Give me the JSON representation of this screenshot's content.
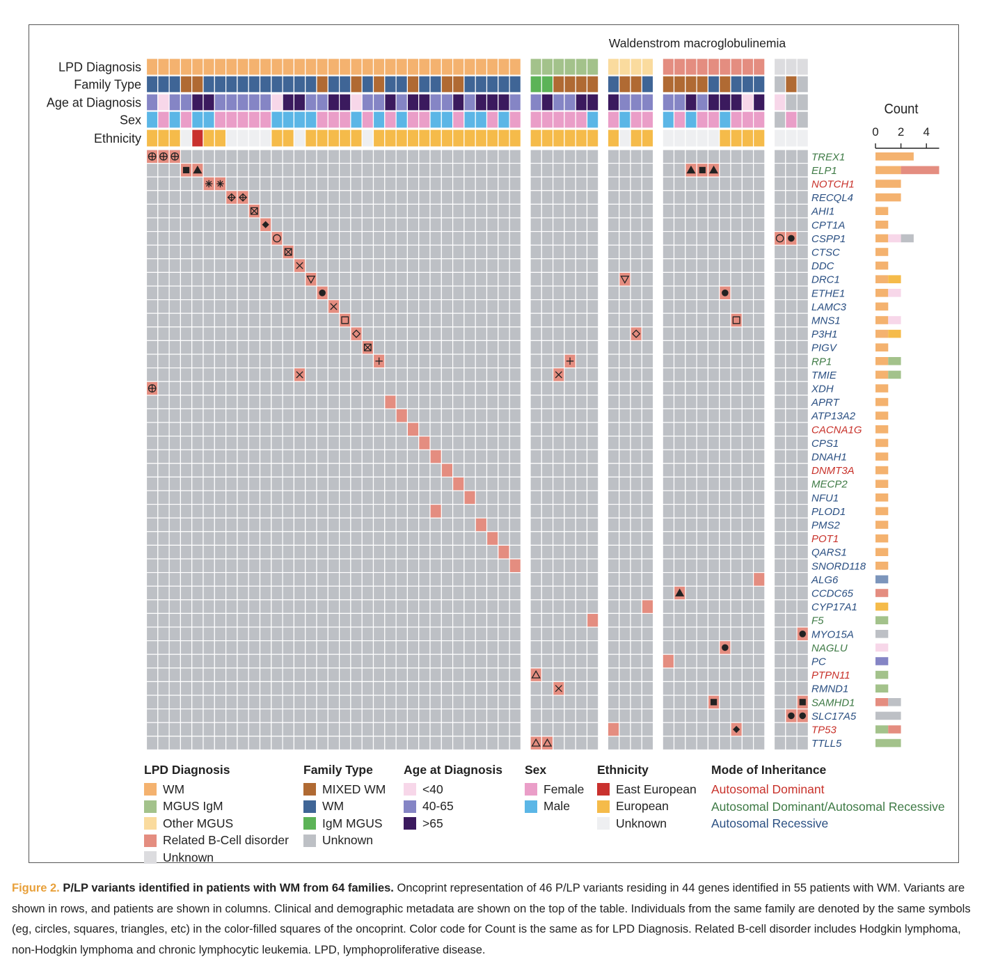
{
  "figure": {
    "label": "Figure 2.",
    "title": "P/LP variants identified in patients with WM from 64 families.",
    "text": "Oncoprint representation of 46 P/LP variants residing in 44 genes identified in 55 patients with WM. Variants are shown in rows, and patients are shown in columns. Clinical and demographic metadata are shown on the top of the table. Individuals from the same family are denoted by the same symbols (eg, circles, squares, triangles, etc) in the color-filled squares of the oncoprint. Color code for Count is the same as for LPD Diagnosis. Related B-cell disorder includes Hodgkin lymphoma, non-Hodgkin lymphoma and chronic lymphocytic leukemia. LPD, lymphoproliferative disease."
  },
  "chart_data": {
    "type": "heatmap",
    "title": "Waldenstrom macroglobulinemia",
    "count_axis": {
      "label": "Count",
      "ticks": [
        "0",
        "2",
        "4"
      ],
      "range": [
        0,
        5
      ]
    },
    "track_labels": [
      "LPD Diagnosis",
      "Family Type",
      "Age at Diagnosis",
      "Sex",
      "Ethnicity"
    ],
    "groups": [
      {
        "lpd": "WM",
        "patients": 33
      },
      {
        "lpd": "MGUS IgM",
        "patients": 6
      },
      {
        "lpd": "Other MGUS",
        "patients": 4
      },
      {
        "lpd": "Related B-Cell disorder",
        "patients": 9
      },
      {
        "lpd": "Unknown",
        "patients": 3
      }
    ],
    "tracks": {
      "family_type": [
        "W",
        "W",
        "W",
        "M",
        "M",
        "W",
        "W",
        "W",
        "W",
        "W",
        "W",
        "W",
        "W",
        "W",
        "W",
        "M",
        "W",
        "W",
        "M",
        "W",
        "M",
        "W",
        "W",
        "M",
        "W",
        "W",
        "M",
        "M",
        "W",
        "W",
        "W",
        "W",
        "W",
        "I",
        "I",
        "M",
        "M",
        "M",
        "M",
        "W",
        "M",
        "M",
        "W",
        "M",
        "M",
        "M",
        "M",
        "W",
        "M",
        "W",
        "W",
        "W",
        "U",
        "M",
        "U"
      ],
      "age": [
        "4",
        "<",
        "4",
        "4",
        ">",
        ">",
        "4",
        "4",
        "4",
        "4",
        "4",
        "<",
        ">",
        ">",
        "4",
        "4",
        ">",
        ">",
        "<",
        "4",
        "4",
        ">",
        "4",
        ">",
        ">",
        "4",
        "4",
        ">",
        "4",
        ">",
        ">",
        ">",
        "4",
        "4",
        ">",
        "4",
        "4",
        ">",
        ">",
        ">",
        "4",
        "4",
        "4",
        "4",
        "4",
        ">",
        "4",
        ">",
        ">",
        ">",
        "<",
        ">",
        "<",
        "U",
        "U"
      ],
      "sex": [
        "M",
        "F",
        "M",
        "F",
        "M",
        "M",
        "F",
        "F",
        "F",
        "F",
        "F",
        "M",
        "M",
        "M",
        "M",
        "F",
        "F",
        "F",
        "M",
        "F",
        "M",
        "F",
        "M",
        "F",
        "F",
        "M",
        "M",
        "F",
        "M",
        "M",
        "F",
        "M",
        "F",
        "F",
        "F",
        "F",
        "F",
        "F",
        "M",
        "F",
        "M",
        "F",
        "F",
        "M",
        "F",
        "M",
        "F",
        "F",
        "M",
        "F",
        "F",
        "F",
        "U",
        "F",
        "U"
      ],
      "ethnicity": [
        "Eu",
        "Eu",
        "Eu",
        "U",
        "Ee",
        "Eu",
        "Eu",
        "U",
        "U",
        "U",
        "U",
        "Eu",
        "Eu",
        "U",
        "Eu",
        "Eu",
        "Eu",
        "Eu",
        "Eu",
        "U",
        "Eu",
        "Eu",
        "Eu",
        "Eu",
        "Eu",
        "Eu",
        "Eu",
        "Eu",
        "Eu",
        "Eu",
        "Eu",
        "Eu",
        "Eu",
        "Eu",
        "Eu",
        "Eu",
        "Eu",
        "Eu",
        "Eu",
        "Eu",
        "U",
        "Eu",
        "Eu",
        "U",
        "U",
        "U",
        "U",
        "U",
        "Eu",
        "Eu",
        "Eu",
        "Eu",
        "U",
        "U",
        "U"
      ]
    },
    "genes": [
      {
        "gene": "TREX1",
        "mode": "ADAR",
        "counts": {
          "WM": 3
        }
      },
      {
        "gene": "ELP1",
        "mode": "ADAR",
        "counts": {
          "WM": 2,
          "Related B-Cell disorder": 3
        }
      },
      {
        "gene": "NOTCH1",
        "mode": "AD",
        "counts": {
          "WM": 2
        }
      },
      {
        "gene": "RECQL4",
        "mode": "AR",
        "counts": {
          "WM": 2
        }
      },
      {
        "gene": "AHI1",
        "mode": "AR",
        "counts": {
          "WM": 1
        }
      },
      {
        "gene": "CPT1A",
        "mode": "AR",
        "counts": {
          "WM": 1
        }
      },
      {
        "gene": "CSPP1",
        "mode": "AR",
        "counts": {
          "WM": 1,
          "Related B-Cell disorder": 1,
          "Unknown": 1
        }
      },
      {
        "gene": "CTSC",
        "mode": "AR",
        "counts": {
          "WM": 1
        }
      },
      {
        "gene": "DDC",
        "mode": "AR",
        "counts": {
          "WM": 1
        }
      },
      {
        "gene": "DRC1",
        "mode": "AR",
        "counts": {
          "WM": 1,
          "Other MGUS": 1
        }
      },
      {
        "gene": "ETHE1",
        "mode": "AR",
        "counts": {
          "WM": 1,
          "Related B-Cell disorder": 1
        }
      },
      {
        "gene": "LAMC3",
        "mode": "AR",
        "counts": {
          "WM": 1
        }
      },
      {
        "gene": "MNS1",
        "mode": "AR",
        "counts": {
          "WM": 1,
          "Related B-Cell disorder": 1
        }
      },
      {
        "gene": "P3H1",
        "mode": "AR",
        "counts": {
          "WM": 1,
          "Other MGUS": 1
        }
      },
      {
        "gene": "PIGV",
        "mode": "AR",
        "counts": {
          "WM": 1
        }
      },
      {
        "gene": "RP1",
        "mode": "ADAR",
        "counts": {
          "WM": 1,
          "MGUS IgM": 1
        }
      },
      {
        "gene": "TMIE",
        "mode": "AR",
        "counts": {
          "WM": 1,
          "MGUS IgM": 1
        }
      },
      {
        "gene": "XDH",
        "mode": "AR",
        "counts": {
          "WM": 1
        }
      },
      {
        "gene": "APRT",
        "mode": "AR",
        "counts": {
          "WM": 1
        }
      },
      {
        "gene": "ATP13A2",
        "mode": "AR",
        "counts": {
          "WM": 1
        }
      },
      {
        "gene": "CACNA1G",
        "mode": "AD",
        "counts": {
          "WM": 1
        }
      },
      {
        "gene": "CPS1",
        "mode": "AR",
        "counts": {
          "WM": 1
        }
      },
      {
        "gene": "DNAH1",
        "mode": "AR",
        "counts": {
          "WM": 1
        }
      },
      {
        "gene": "DNMT3A",
        "mode": "AD",
        "counts": {
          "WM": 1
        }
      },
      {
        "gene": "MECP2",
        "mode": "ADAR",
        "counts": {
          "WM": 1
        }
      },
      {
        "gene": "NFU1",
        "mode": "AR",
        "counts": {
          "WM": 1
        }
      },
      {
        "gene": "PLOD1",
        "mode": "AR",
        "counts": {
          "WM": 1
        }
      },
      {
        "gene": "PMS2",
        "mode": "AR",
        "counts": {
          "WM": 1
        }
      },
      {
        "gene": "POT1",
        "mode": "AD",
        "counts": {
          "WM": 1
        }
      },
      {
        "gene": "QARS1",
        "mode": "AR",
        "counts": {
          "WM": 1
        }
      },
      {
        "gene": "SNORD118",
        "mode": "AR",
        "counts": {
          "WM": 1
        }
      },
      {
        "gene": "ALG6",
        "mode": "AR",
        "counts": {
          "Related B-Cell disorder": 1
        }
      },
      {
        "gene": "CCDC65",
        "mode": "AR",
        "counts": {
          "Related B-Cell disorder": 1
        }
      },
      {
        "gene": "CYP17A1",
        "mode": "AR",
        "counts": {
          "Other MGUS": 1
        }
      },
      {
        "gene": "F5",
        "mode": "ADAR",
        "counts": {
          "MGUS IgM": 1
        }
      },
      {
        "gene": "MYO15A",
        "mode": "AR",
        "counts": {
          "Unknown": 1
        }
      },
      {
        "gene": "NAGLU",
        "mode": "ADAR",
        "counts": {
          "Related B-Cell disorder": 1
        }
      },
      {
        "gene": "PC",
        "mode": "AR",
        "counts": {
          "Other MGUS": 1
        }
      },
      {
        "gene": "PTPN11",
        "mode": "AD",
        "counts": {
          "MGUS IgM": 1
        }
      },
      {
        "gene": "RMND1",
        "mode": "AR",
        "counts": {
          "MGUS IgM": 1
        }
      },
      {
        "gene": "SAMHD1",
        "mode": "ADAR",
        "counts": {
          "Related B-Cell disorder": 1,
          "Unknown": 1
        }
      },
      {
        "gene": "SLC17A5",
        "mode": "AR",
        "counts": {
          "Unknown": 2
        }
      },
      {
        "gene": "TP53",
        "mode": "AD",
        "counts": {
          "MGUS IgM": 1,
          "Related B-Cell disorder": 1
        }
      },
      {
        "gene": "TTLL5",
        "mode": "AR",
        "counts": {
          "MGUS IgM": 2
        }
      }
    ],
    "variants": [
      [
        0,
        0,
        "oplus"
      ],
      [
        0,
        1,
        "oplus"
      ],
      [
        0,
        2,
        "oplus"
      ],
      [
        1,
        3,
        "sq"
      ],
      [
        1,
        4,
        "tri"
      ],
      [
        1,
        45,
        "tri"
      ],
      [
        1,
        46,
        "sq"
      ],
      [
        1,
        47,
        "tri"
      ],
      [
        2,
        5,
        "star"
      ],
      [
        2,
        6,
        "star"
      ],
      [
        3,
        7,
        "dplus"
      ],
      [
        3,
        8,
        "dplus"
      ],
      [
        4,
        9,
        "sqx"
      ],
      [
        5,
        10,
        "dia"
      ],
      [
        6,
        11,
        "circ"
      ],
      [
        6,
        52,
        "circ"
      ],
      [
        6,
        53,
        "dot"
      ],
      [
        7,
        12,
        "sqx"
      ],
      [
        8,
        13,
        "x"
      ],
      [
        9,
        14,
        "tri_d"
      ],
      [
        9,
        40,
        "tri_d"
      ],
      [
        10,
        15,
        "dot"
      ],
      [
        10,
        48,
        "dot"
      ],
      [
        11,
        16,
        "x"
      ],
      [
        12,
        17,
        "sq_o"
      ],
      [
        12,
        49,
        "sq_o"
      ],
      [
        13,
        18,
        "dia_o"
      ],
      [
        13,
        41,
        "dia_o"
      ],
      [
        14,
        19,
        "sqx"
      ],
      [
        15,
        20,
        "plus"
      ],
      [
        15,
        36,
        "plus"
      ],
      [
        16,
        13,
        "x"
      ],
      [
        16,
        35,
        "x"
      ],
      [
        17,
        0,
        "oplus"
      ],
      [
        18,
        21,
        ""
      ],
      [
        19,
        22,
        ""
      ],
      [
        20,
        23,
        ""
      ],
      [
        21,
        24,
        ""
      ],
      [
        22,
        25,
        ""
      ],
      [
        23,
        26,
        ""
      ],
      [
        24,
        27,
        ""
      ],
      [
        25,
        28,
        ""
      ],
      [
        26,
        25,
        ""
      ],
      [
        27,
        29,
        ""
      ],
      [
        28,
        30,
        ""
      ],
      [
        29,
        31,
        ""
      ],
      [
        30,
        32,
        ""
      ],
      [
        31,
        51,
        ""
      ],
      [
        32,
        44,
        "tri"
      ],
      [
        33,
        42,
        ""
      ],
      [
        34,
        38,
        ""
      ],
      [
        35,
        54,
        "dot"
      ],
      [
        36,
        48,
        "dot"
      ],
      [
        37,
        43,
        ""
      ],
      [
        38,
        33,
        "tri_o"
      ],
      [
        39,
        35,
        "x"
      ],
      [
        40,
        47,
        "sq"
      ],
      [
        40,
        54,
        "sq"
      ],
      [
        41,
        53,
        "dot"
      ],
      [
        41,
        54,
        "dot"
      ],
      [
        42,
        39,
        ""
      ],
      [
        42,
        49,
        "dia"
      ],
      [
        43,
        33,
        "tri_o"
      ],
      [
        43,
        34,
        "tri_o"
      ]
    ]
  },
  "legend": {
    "lpd": {
      "title": "LPD Diagnosis",
      "items": [
        {
          "label": "WM",
          "color": "#f4b26f"
        },
        {
          "label": "MGUS IgM",
          "color": "#a3c28b"
        },
        {
          "label": "Other MGUS",
          "color": "#fadb9e"
        },
        {
          "label": "Related B-Cell disorder",
          "color": "#e48d80"
        },
        {
          "label": "Unknown",
          "color": "#dcdcdf"
        }
      ]
    },
    "family": {
      "title": "Family Type",
      "items": [
        {
          "label": "MIXED WM",
          "color": "#b06a33"
        },
        {
          "label": "WM",
          "color": "#3f6596"
        },
        {
          "label": "IgM MGUS",
          "color": "#5cb357"
        },
        {
          "label": "Unknown",
          "color": "#bdc0c5"
        }
      ]
    },
    "age": {
      "title": "Age at Diagnosis",
      "items": [
        {
          "label": "<40",
          "color": "#f7d7e9"
        },
        {
          "label": "40-65",
          "color": "#8585c5"
        },
        {
          "label": ">65",
          "color": "#3b1a5e"
        }
      ]
    },
    "sex": {
      "title": "Sex",
      "items": [
        {
          "label": "Female",
          "color": "#ea9ec8"
        },
        {
          "label": "Male",
          "color": "#5bb6e6"
        }
      ]
    },
    "ethnicity": {
      "title": "Ethnicity",
      "items": [
        {
          "label": "East European",
          "color": "#c9312e"
        },
        {
          "label": "European",
          "color": "#f5bb4a"
        },
        {
          "label": "Unknown",
          "color": "#eeeff1"
        }
      ]
    },
    "moi": {
      "title": "Mode of Inheritance",
      "items": [
        {
          "label": "Autosomal Dominant",
          "color": "#c8322b"
        },
        {
          "label": "Autosomal Dominant/Autosomal Recessive",
          "color": "#3e7a45"
        },
        {
          "label": "Autosomal Recessive",
          "color": "#2a4f82"
        }
      ]
    }
  },
  "colors": {
    "cell": "#bdc0c5",
    "variant": "#e48d80",
    "grid": "#ffffff",
    "count_unknown": "#bdc0c5",
    "count_other": "#f5bb4a",
    "count_pink": "#f7d7e9",
    "count_alg6": "#7c95bb",
    "count_pc": "#8585c5"
  }
}
